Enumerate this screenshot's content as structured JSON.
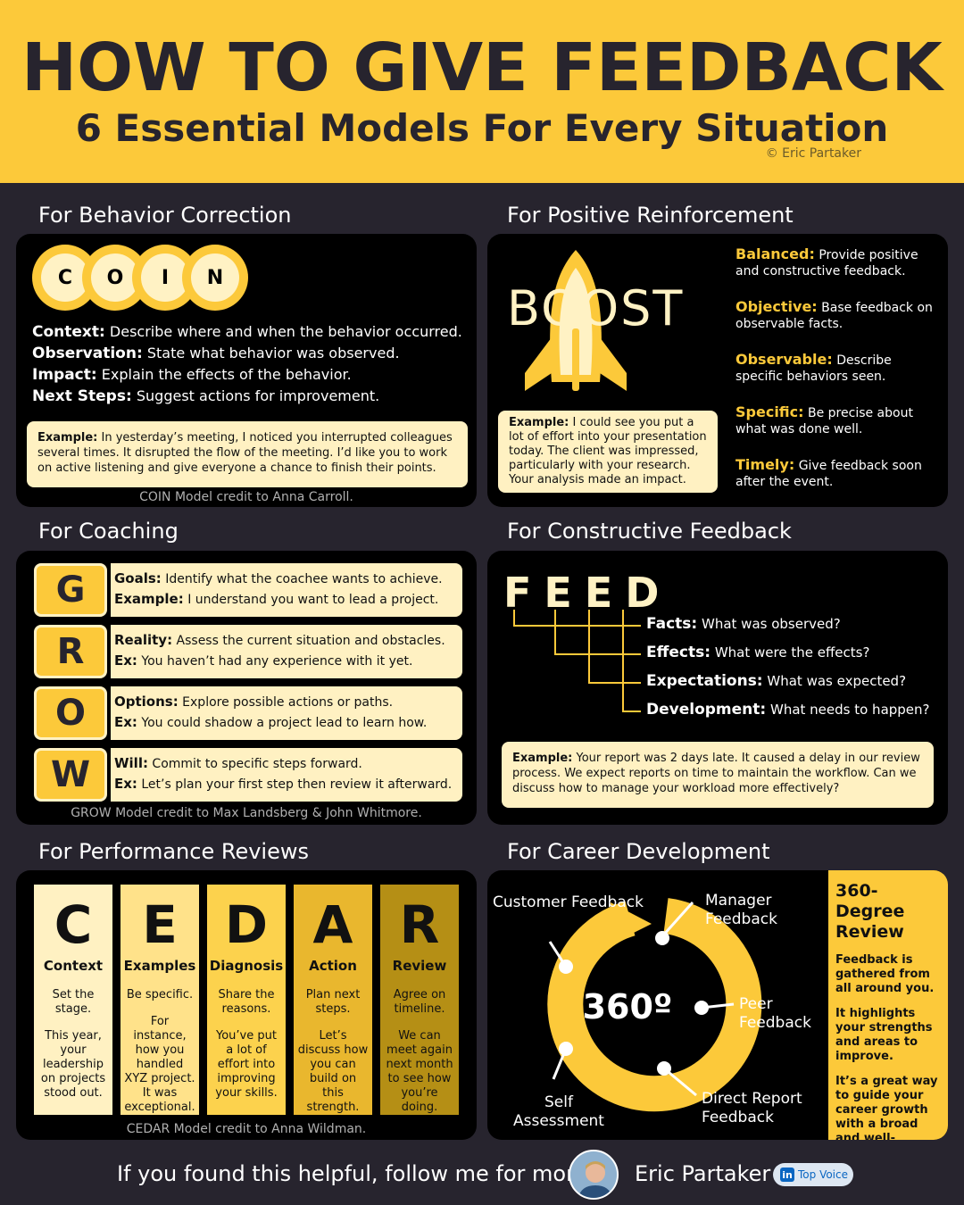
{
  "header": {
    "title": "HOW TO GIVE FEEDBACK",
    "subtitle": "6 Essential Models For Every Situation",
    "copyright": "© Eric Partaker"
  },
  "coin": {
    "section_title": "For Behavior Correction",
    "letters": [
      "C",
      "O",
      "I",
      "N"
    ],
    "items": [
      {
        "term": "Context:",
        "desc": "Describe where and when the behavior occurred."
      },
      {
        "term": "Observation:",
        "desc": "State what behavior was observed."
      },
      {
        "term": "Impact:",
        "desc": "Explain the effects of the behavior."
      },
      {
        "term": "Next Steps:",
        "desc": "Suggest actions for improvement."
      }
    ],
    "example_label": "Example:",
    "example_text": "In yesterday’s meeting, I noticed you interrupted colleagues several times. It disrupted the flow of the meeting. I’d like you to work on active listening and give everyone a chance to finish their points.",
    "credit": "COIN Model credit to Anna Carroll."
  },
  "boost": {
    "section_title": "For Positive Reinforcement",
    "word": "BOOST",
    "items": [
      {
        "term": "Balanced:",
        "desc": "Provide positive and constructive feedback."
      },
      {
        "term": "Objective:",
        "desc": "Base feedback on observable facts."
      },
      {
        "term": "Observable:",
        "desc": "Describe specific behaviors seen."
      },
      {
        "term": "Specific:",
        "desc": "Be precise about what was done well."
      },
      {
        "term": "Timely:",
        "desc": "Give feedback soon after the event."
      }
    ],
    "example_label": "Example:",
    "example_text": "I could see you put a lot of effort into your presentation today. The client was impressed, particularly with your research. Your analysis made an impact."
  },
  "grow": {
    "section_title": "For Coaching",
    "rows": [
      {
        "letter": "G",
        "term": "Goals:",
        "desc": "Identify what the coachee wants to achieve.",
        "ex_label": "Example:",
        "ex": "I understand you want to lead a project."
      },
      {
        "letter": "R",
        "term": "Reality:",
        "desc": "Assess the current situation and obstacles.",
        "ex_label": "Ex:",
        "ex": "You haven’t had any experience with it yet."
      },
      {
        "letter": "O",
        "term": "Options:",
        "desc": "Explore possible actions or paths.",
        "ex_label": "Ex:",
        "ex": "You could shadow a project lead to learn how."
      },
      {
        "letter": "W",
        "term": "Will:",
        "desc": "Commit to specific steps forward.",
        "ex_label": "Ex:",
        "ex": "Let’s plan your first step then review it afterward."
      }
    ],
    "credit": "GROW Model credit to Max Landsberg & John Whitmore."
  },
  "feed": {
    "section_title": "For Constructive Feedback",
    "word": "FEED",
    "items": [
      {
        "term": "Facts:",
        "desc": "What was observed?"
      },
      {
        "term": "Effects:",
        "desc": "What were the effects?"
      },
      {
        "term": "Expectations:",
        "desc": "What was expected?"
      },
      {
        "term": "Development:",
        "desc": "What needs to happen?"
      }
    ],
    "example_label": "Example:",
    "example_text": "Your report was 2 days late. It caused a delay in our review process. We expect reports on time to maintain the workflow. Can we discuss how to manage your workload more effectively?"
  },
  "cedar": {
    "section_title": "For Performance Reviews",
    "columns": [
      {
        "letter": "C",
        "name": "Context",
        "d1": "Set the stage.",
        "d2": "This year, your leadership on projects stood out.",
        "color": "#fff1c2"
      },
      {
        "letter": "E",
        "name": "Examples",
        "d1": "Be specific.",
        "d2": "For instance, how you handled XYZ project. It was exceptional.",
        "color": "#ffe28a"
      },
      {
        "letter": "D",
        "name": "Diagnosis",
        "d1": "Share the reasons.",
        "d2": "You’ve put a lot of effort into improving your skills.",
        "color": "#fcd24d"
      },
      {
        "letter": "A",
        "name": "Action",
        "d1": "Plan next steps.",
        "d2": "Let’s discuss how you can build on this strength.",
        "color": "#e9b72e"
      },
      {
        "letter": "R",
        "name": "Review",
        "d1": "Agree on timeline.",
        "d2": "We can meet again next month to see how you’re doing.",
        "color": "#b58f15"
      }
    ],
    "credit": "CEDAR Model credit to Anna Wildman."
  },
  "career": {
    "section_title": "For Career Development",
    "center": "360º",
    "labels": {
      "customer": "Customer Feedback",
      "manager": "Manager Feedback",
      "peer": "Peer Feedback",
      "direct": "Direct Report Feedback",
      "self": "Self Assessment"
    },
    "review_title": "360-Degree Review",
    "review_points": [
      "Feedback is gathered from all around you.",
      "It highlights your strengths and areas to improve.",
      "It’s a great way to guide your career growth with a broad and well-rounded perspective."
    ]
  },
  "footer": {
    "cta": "If you found this helpful, follow me for more",
    "name": "Eric Partaker",
    "badge": "Top Voice",
    "badge_icon": "linkedin-icon"
  },
  "colors": {
    "accent": "#fcc93a",
    "background": "#27242e",
    "cream": "#fff1c2"
  }
}
